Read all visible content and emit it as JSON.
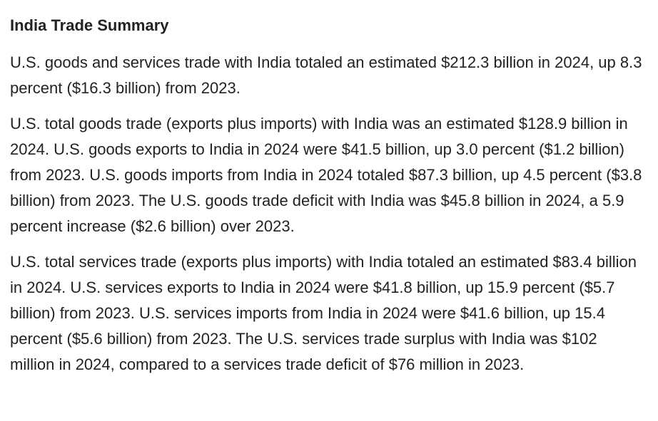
{
  "document": {
    "title": "India Trade Summary",
    "paragraphs": [
      "U.S. goods and services trade with India totaled an estimated $212.3 billion in 2024, up 8.3 percent ($16.3 billion) from 2023.",
      "U.S. total goods trade (exports plus imports) with India was an estimated $128.9 billion in 2024. U.S. goods exports to India in 2024 were $41.5 billion, up 3.0 percent ($1.2 billion) from 2023. U.S. goods imports from India in 2024 totaled $87.3 billion, up 4.5 percent ($3.8 billion) from 2023. The U.S. goods trade deficit with India was $45.8 billion in 2024, a 5.9 percent increase ($2.6 billion) over 2023.",
      "U.S. total services trade (exports plus imports) with India totaled an estimated $83.4 billion in 2024. U.S. services exports to India in 2024 were $41.8 billion, up 15.9 percent ($5.7 billion) from 2023. U.S. services imports from India in 2024 were $41.6 billion, up 15.4 percent ($5.6 billion) from 2023. The U.S. services trade surplus with India was $102 million in 2024, compared to a services trade deficit of $76 million in 2023."
    ]
  },
  "colors": {
    "text": "#222222",
    "background": "#ffffff"
  }
}
